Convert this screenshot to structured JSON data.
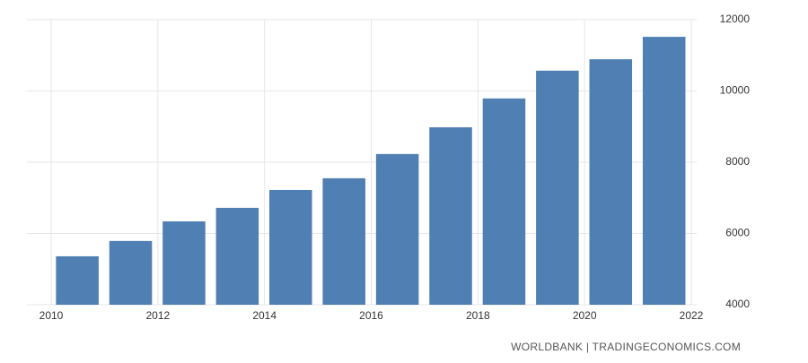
{
  "chart_data": {
    "type": "bar",
    "x": [
      2010,
      2011,
      2012,
      2013,
      2014,
      2015,
      2016,
      2017,
      2018,
      2019,
      2020,
      2021
    ],
    "values": [
      5360,
      5790,
      6340,
      6720,
      7220,
      7550,
      8230,
      8980,
      9790,
      10570,
      10890,
      11520
    ],
    "color": "#4f7fb3",
    "xlim": [
      2010,
      2022
    ],
    "xticks": [
      2010,
      2012,
      2014,
      2016,
      2018,
      2020,
      2022
    ],
    "ylim": [
      4000,
      12000
    ],
    "yticks": [
      4000,
      6000,
      8000,
      10000,
      12000
    ],
    "grid": true,
    "source": "WORLDBANK | TRADINGECONOMICS.COM"
  }
}
